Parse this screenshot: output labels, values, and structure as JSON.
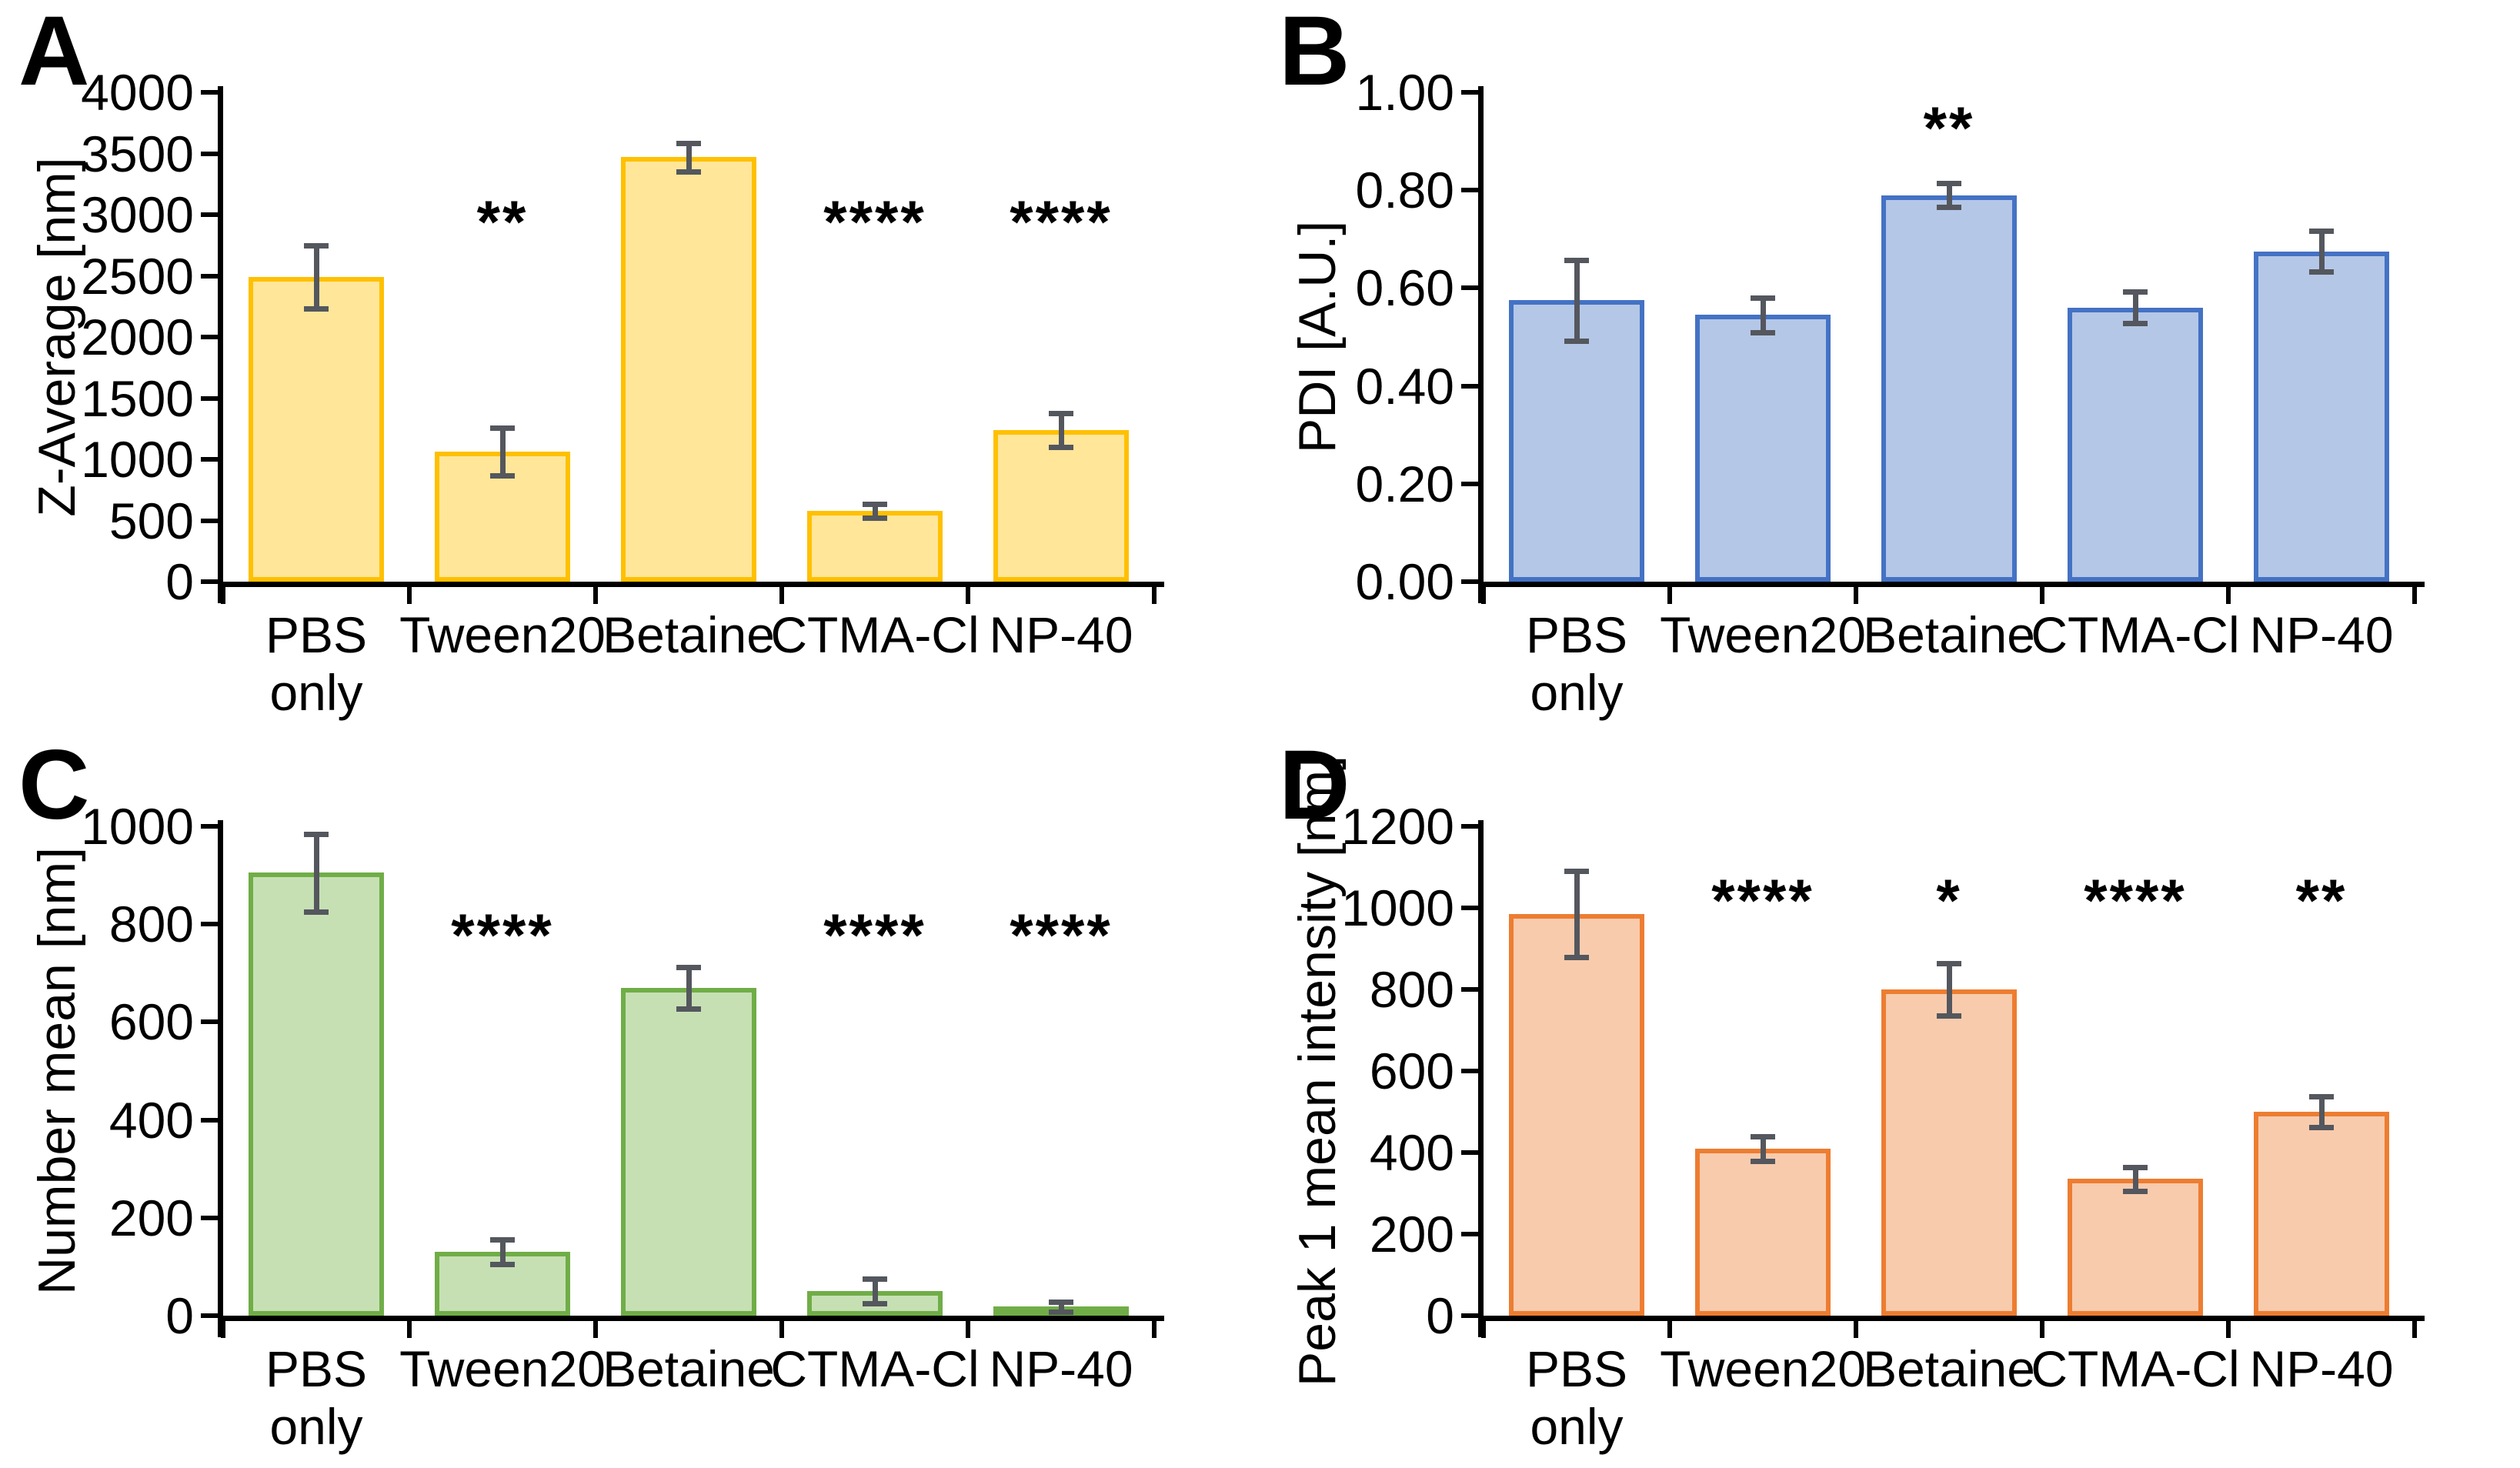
{
  "figure": {
    "background": "#ffffff",
    "text_color": "#000000",
    "axis_color": "#000000",
    "error_bar_color": "#54575D",
    "layout": "2x2 grid of bar-chart panels labeled A-D, shared category set"
  },
  "chart_data": [
    {
      "type": "bar",
      "panel_letter": "A",
      "ylabel": "Z-Average [nm]",
      "xlabel": "",
      "categories": [
        "PBS\nonly",
        "Tween20",
        "Betaine",
        "CTMA-Cl",
        "NP-40"
      ],
      "values": [
        2490,
        1060,
        3470,
        580,
        1240
      ],
      "errors": [
        260,
        195,
        115,
        55,
        140
      ],
      "annotations": [
        "",
        "**",
        "",
        "****",
        "****"
      ],
      "annotation_y": 2950,
      "ylim": [
        0,
        4000
      ],
      "ytick_step": 500,
      "ytick_labels": [
        "0",
        "500",
        "1000",
        "1500",
        "2000",
        "2500",
        "3000",
        "3500",
        "4000"
      ],
      "bar_fill": "#FFE699",
      "bar_border": "#FFC000",
      "grid": "off",
      "legend": "none"
    },
    {
      "type": "bar",
      "panel_letter": "B",
      "ylabel": "PDI [A.U.]",
      "xlabel": "",
      "categories": [
        "PBS\nonly",
        "Tween20",
        "Betaine",
        "CTMA-Cl",
        "NP-40"
      ],
      "values": [
        0.575,
        0.545,
        0.79,
        0.56,
        0.675
      ],
      "errors": [
        0.083,
        0.035,
        0.025,
        0.032,
        0.042
      ],
      "annotations": [
        "",
        "",
        "**",
        "",
        ""
      ],
      "annotation_y": 0.93,
      "ylim": [
        0,
        1.0
      ],
      "ytick_step": 0.2,
      "ytick_labels": [
        "0.00",
        "0.20",
        "0.40",
        "0.60",
        "0.80",
        "1.00"
      ],
      "bar_fill": "#B4C7E7",
      "bar_border": "#4472C4",
      "grid": "off",
      "legend": "none"
    },
    {
      "type": "bar",
      "panel_letter": "C",
      "ylabel": "Number mean [nm]",
      "xlabel": "",
      "categories": [
        "PBS\nonly",
        "Tween20",
        "Betaine",
        "CTMA-Cl",
        "NP-40"
      ],
      "values": [
        905,
        130,
        670,
        50,
        18
      ],
      "errors": [
        80,
        25,
        42,
        25,
        10
      ],
      "annotations": [
        "",
        "****",
        "",
        "****",
        "****"
      ],
      "annotation_y": 780,
      "ylim": [
        0,
        1000
      ],
      "ytick_step": 200,
      "ytick_labels": [
        "0",
        "200",
        "400",
        "600",
        "800",
        "1000"
      ],
      "bar_fill": "#C6E0B4",
      "bar_border": "#70AD47",
      "grid": "off",
      "legend": "none"
    },
    {
      "type": "bar",
      "panel_letter": "D",
      "ylabel": "Peak 1 mean intensity [nm]",
      "xlabel": "",
      "categories": [
        "PBS\nonly",
        "Tween20",
        "Betaine",
        "CTMA-Cl",
        "NP-40"
      ],
      "values": [
        985,
        410,
        800,
        335,
        500
      ],
      "errors": [
        105,
        30,
        65,
        30,
        38
      ],
      "annotations": [
        "",
        "****",
        "*",
        "****",
        "**"
      ],
      "annotation_y": 1020,
      "ylim": [
        0,
        1200
      ],
      "ytick_step": 200,
      "ytick_labels": [
        "0",
        "200",
        "400",
        "600",
        "800",
        "1000",
        "1200"
      ],
      "bar_fill": "#F8CBAD",
      "bar_border": "#ED7D31",
      "grid": "off",
      "legend": "none"
    }
  ]
}
